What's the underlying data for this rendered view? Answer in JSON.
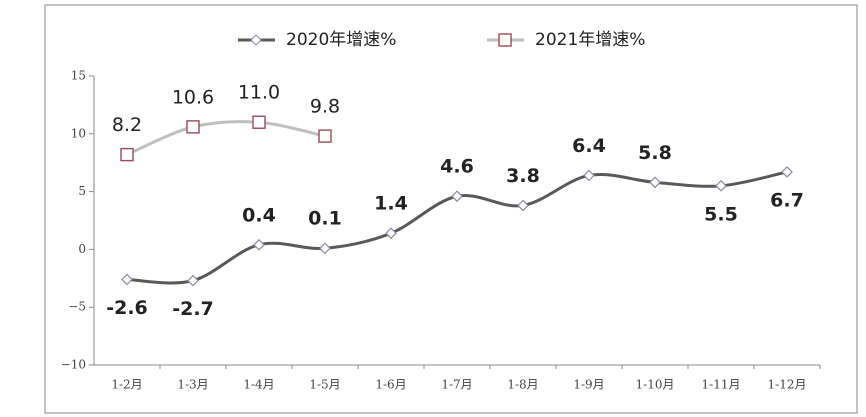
{
  "chart_data": {
    "type": "line",
    "categories": [
      "1-2月",
      "1-3月",
      "1-4月",
      "1-5月",
      "1-6月",
      "1-7月",
      "1-8月",
      "1-9月",
      "1-10月",
      "1-11月",
      "1-12月"
    ],
    "series": [
      {
        "name": "2020年增速%",
        "color": "#595959",
        "values": [
          -2.6,
          -2.7,
          0.4,
          0.1,
          1.4,
          4.6,
          3.8,
          6.4,
          5.8,
          5.5,
          6.7
        ],
        "value_labels": [
          "-2.6",
          "-2.7",
          "0.4",
          "0.1",
          "1.4",
          "4.6",
          "3.8",
          "6.4",
          "5.8",
          "5.5",
          "6.7"
        ]
      },
      {
        "name": "2021年增速%",
        "color": "#bfbfbf",
        "values": [
          8.2,
          10.6,
          11.0,
          9.8,
          null,
          null,
          null,
          null,
          null,
          null,
          null
        ],
        "value_labels": [
          "8.2",
          "10.6",
          "11.0",
          "9.8",
          null,
          null,
          null,
          null,
          null,
          null,
          null
        ]
      }
    ],
    "ylim": [
      -10,
      15
    ],
    "yticks": [
      {
        "value": -10,
        "label": "−10"
      },
      {
        "value": -5,
        "label": "−5"
      },
      0,
      5,
      10,
      15
    ],
    "legend": "top"
  }
}
